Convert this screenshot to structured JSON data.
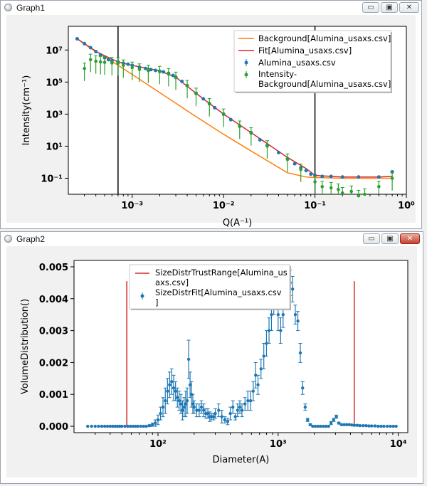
{
  "windows": [
    {
      "title": "Graph1",
      "controls": [
        "minimize",
        "restore",
        "close"
      ]
    },
    {
      "title": "Graph2",
      "controls": [
        "minimize",
        "restore",
        "close"
      ]
    }
  ],
  "chart_data": [
    {
      "type": "scatter",
      "xscale": "log",
      "yscale": "log",
      "xlabel": "Q(A⁻¹)",
      "ylabel": "Intensity(cm⁻¹)",
      "xlim": [
        0.0002,
        1.0
      ],
      "ylim": [
        0.01,
        300000000
      ],
      "xtick_labels": [
        "10⁻³",
        "10⁻²",
        "10⁻¹",
        "10⁰"
      ],
      "ytick_labels": [
        "10⁻¹",
        "10¹",
        "10³",
        "10⁵",
        "10⁷"
      ],
      "legend_position": "top-right",
      "vlines": [
        0.0007,
        0.1
      ],
      "series": [
        {
          "name": "Background[Alumina_usaxs.csv]",
          "kind": "line",
          "color": "#ff7f0e",
          "x": [
            0.00025,
            0.0005,
            0.001,
            0.002,
            0.005,
            0.01,
            0.02,
            0.05,
            0.08,
            0.1,
            0.2,
            0.5,
            0.7
          ],
          "y": [
            50000000,
            3800000,
            300000,
            22000,
            700,
            55,
            5,
            0.22,
            0.12,
            0.11,
            0.1,
            0.1,
            0.1
          ]
        },
        {
          "name": "Fit[Alumina_usaxs.csv]",
          "kind": "line",
          "color": "#d62728",
          "x": [
            0.00025,
            0.0004,
            0.0007,
            0.001,
            0.0015,
            0.002,
            0.003,
            0.005,
            0.01,
            0.02,
            0.05,
            0.08,
            0.1,
            0.15,
            0.2,
            0.5,
            0.7
          ],
          "y": [
            50000000,
            8000000,
            1800000,
            1100000,
            700000,
            500000,
            200000,
            20000,
            1000,
            70,
            2,
            0.4,
            0.15,
            0.13,
            0.12,
            0.12,
            0.13
          ]
        },
        {
          "name": "Alumina_usaxs.csv",
          "kind": "points",
          "color": "#1f77b4",
          "x": [
            0.00025,
            0.0003,
            0.00035,
            0.0004,
            0.00045,
            0.0005,
            0.00055,
            0.0006,
            0.0007,
            0.0008,
            0.0009,
            0.001,
            0.0012,
            0.0014,
            0.0016,
            0.0018,
            0.002,
            0.0022,
            0.0025,
            0.0028,
            0.003,
            0.0035,
            0.004,
            0.005,
            0.006,
            0.007,
            0.008,
            0.01,
            0.012,
            0.015,
            0.02,
            0.025,
            0.03,
            0.04,
            0.05,
            0.06,
            0.07,
            0.08,
            0.09,
            0.1,
            0.12,
            0.15,
            0.2,
            0.3,
            0.5,
            0.7
          ],
          "y": [
            50000000,
            25000000,
            14000000,
            8000000,
            5000000,
            3300000,
            2500000,
            2100000,
            1800000,
            1500000,
            1300000,
            1100000,
            850000,
            700000,
            600000,
            530000,
            480000,
            430000,
            350000,
            260000,
            200000,
            110000,
            60000,
            20000,
            9000,
            4500,
            2500,
            1000,
            450,
            180,
            70,
            25,
            11,
            4,
            1.6,
            0.8,
            0.45,
            0.3,
            0.18,
            0.15,
            0.13,
            0.13,
            0.12,
            0.12,
            0.12,
            0.25
          ]
        },
        {
          "name": "Intensity-Background[Alumina_usaxs.csv]",
          "kind": "errorbar",
          "color": "#2ca02c",
          "x": [
            0.0003,
            0.00035,
            0.0004,
            0.00045,
            0.0005,
            0.0006,
            0.0007,
            0.0008,
            0.001,
            0.0012,
            0.0015,
            0.002,
            0.0025,
            0.003,
            0.004,
            0.005,
            0.007,
            0.01,
            0.015,
            0.02,
            0.03,
            0.05,
            0.07,
            0.1,
            0.12,
            0.15,
            0.18,
            0.2,
            0.25,
            0.3,
            0.35,
            0.5,
            0.7
          ],
          "y": [
            700000,
            2500000,
            2000000,
            1800000,
            1700000,
            1550000,
            1500000,
            1100000,
            800000,
            620000,
            520000,
            440000,
            320000,
            190000,
            58000,
            19000,
            4300,
            950,
            170,
            65,
            10,
            1.5,
            0.35,
            0.06,
            0.03,
            0.025,
            0.02,
            0.012,
            0.015,
            0.008,
            0.01,
            0.03,
            0.1
          ]
        }
      ]
    },
    {
      "type": "scatter",
      "xscale": "log",
      "xlabel": "Diameter(A)",
      "ylabel": "VolumeDistribution()",
      "xlim": [
        20,
        12000
      ],
      "ylim": [
        -0.0002,
        0.0052
      ],
      "xtick_labels": [
        "10²",
        "10³",
        "10⁴"
      ],
      "ytick_labels": [
        "0.000",
        "0.001",
        "0.002",
        "0.003",
        "0.004",
        "0.005"
      ],
      "legend_position": "top-center",
      "series": [
        {
          "name": "SizeDistrTrustRange[Alumina_usaxs.csv]",
          "kind": "vline",
          "color": "#d62728",
          "x": [
            55,
            4300
          ],
          "y": [
            0.0,
            0.00455
          ]
        },
        {
          "name": "SizeDistrFit[Alumina_usaxs.csv]",
          "kind": "errorbar",
          "color": "#1f77b4",
          "x": [
            26,
            28,
            30,
            32,
            34,
            36,
            38,
            40,
            42,
            44,
            46,
            48,
            50,
            53,
            56,
            59,
            62,
            65,
            68,
            72,
            76,
            80,
            85,
            90,
            95,
            100,
            105,
            110,
            115,
            120,
            125,
            130,
            135,
            140,
            145,
            150,
            155,
            160,
            165,
            170,
            175,
            180,
            185,
            190,
            195,
            200,
            210,
            220,
            230,
            240,
            250,
            260,
            270,
            280,
            290,
            300,
            320,
            340,
            360,
            380,
            400,
            420,
            440,
            460,
            480,
            500,
            530,
            560,
            590,
            620,
            650,
            680,
            720,
            760,
            800,
            840,
            880,
            920,
            960,
            1000,
            1050,
            1100,
            1150,
            1200,
            1260,
            1320,
            1390,
            1460,
            1530,
            1600,
            1680,
            1760,
            1850,
            1940,
            2040,
            2150,
            2260,
            2380,
            2500,
            2630,
            2760,
            2900,
            3050,
            3200,
            3370,
            3540,
            3720,
            3900,
            4100,
            4300,
            4550,
            4800,
            5100,
            5400,
            5700,
            6000,
            6400,
            6800,
            7200,
            7600,
            8100,
            8600,
            9100,
            9600
          ],
          "y": [
            0,
            0,
            0,
            0,
            0,
            0,
            0,
            0,
            0,
            0,
            0,
            0,
            0,
            0,
            0,
            0,
            0,
            0,
            0,
            0,
            0,
            0,
            2e-05,
            5e-05,
            0.0001,
            0.0002,
            0.0004,
            0.0006,
            0.0008,
            0.0011,
            0.0013,
            0.0014,
            0.0012,
            0.0011,
            0.0009,
            0.0008,
            0.0007,
            0.0005,
            0.0006,
            0.0007,
            0.0008,
            0.0021,
            0.0013,
            0.001,
            0.0007,
            0.0006,
            0.0005,
            0.0005,
            0.0006,
            0.0005,
            0.0004,
            0.0004,
            0.0003,
            0.0003,
            0.0003,
            0.0004,
            0.0005,
            0.0003,
            0.0002,
            0.00015,
            0.0004,
            0.0006,
            0.0003,
            0.0005,
            0.0006,
            0.0005,
            0.0007,
            0.0008,
            0.0008,
            0.0011,
            0.0016,
            0.0013,
            0.0018,
            0.0022,
            0.0026,
            0.003,
            0.0035,
            0.004,
            0.0042,
            0.0035,
            0.003,
            0.0035,
            0.0041,
            0.0044,
            0.0045,
            0.0043,
            0.0035,
            0.0033,
            0.0023,
            0.0012,
            0.0006,
            0.0002,
            5e-05,
            0,
            0,
            0,
            0,
            0,
            0,
            0,
            0.0001,
            0.0002,
            0.0003,
            0.0001,
            5e-05,
            5e-05,
            5e-05,
            5e-05,
            4e-05,
            3e-05,
            3e-05,
            2e-05,
            2e-05,
            2e-05,
            1e-05,
            1e-05,
            1e-05,
            0,
            0,
            0,
            0,
            0,
            0,
            0
          ],
          "err": [
            0,
            0,
            0,
            0,
            0,
            0,
            0,
            0,
            0,
            0,
            0,
            0,
            0,
            0,
            0,
            0,
            0,
            0,
            0,
            0,
            0,
            0,
            3e-05,
            5e-05,
            0.0001,
            0.00015,
            0.0002,
            0.0003,
            0.0004,
            0.0004,
            0.0004,
            0.0004,
            0.0004,
            0.0003,
            0.0003,
            0.0003,
            0.0003,
            0.0003,
            0.0003,
            0.0004,
            0.0004,
            0.0006,
            0.0004,
            0.0004,
            0.0003,
            0.0002,
            0.0002,
            0.0002,
            0.0002,
            0.0002,
            0.00015,
            0.00015,
            0.00015,
            0.0001,
            0.0001,
            0.00015,
            0.0002,
            0.0002,
            0.0001,
            0.0001,
            0.0002,
            0.0002,
            0.0001,
            0.0002,
            0.0002,
            0.0002,
            0.0002,
            0.0003,
            0.0003,
            0.0003,
            0.0004,
            0.0003,
            0.0003,
            0.0004,
            0.0004,
            0.0004,
            0.0005,
            0.0005,
            0.0005,
            0.0005,
            0.0004,
            0.0004,
            0.0004,
            0.0004,
            0.0004,
            0.0004,
            0.0003,
            0.0003,
            0.0003,
            0.0002,
            0.0001,
            5e-05,
            3e-05,
            0,
            0,
            0,
            0,
            0,
            0,
            0,
            5e-05,
            5e-05,
            5e-05,
            3e-05,
            2e-05,
            2e-05,
            2e-05,
            2e-05,
            2e-05,
            2e-05,
            2e-05,
            1e-05,
            1e-05,
            1e-05,
            1e-05,
            1e-05,
            1e-05,
            0,
            0,
            0,
            0,
            0,
            0,
            0
          ]
        }
      ]
    }
  ]
}
